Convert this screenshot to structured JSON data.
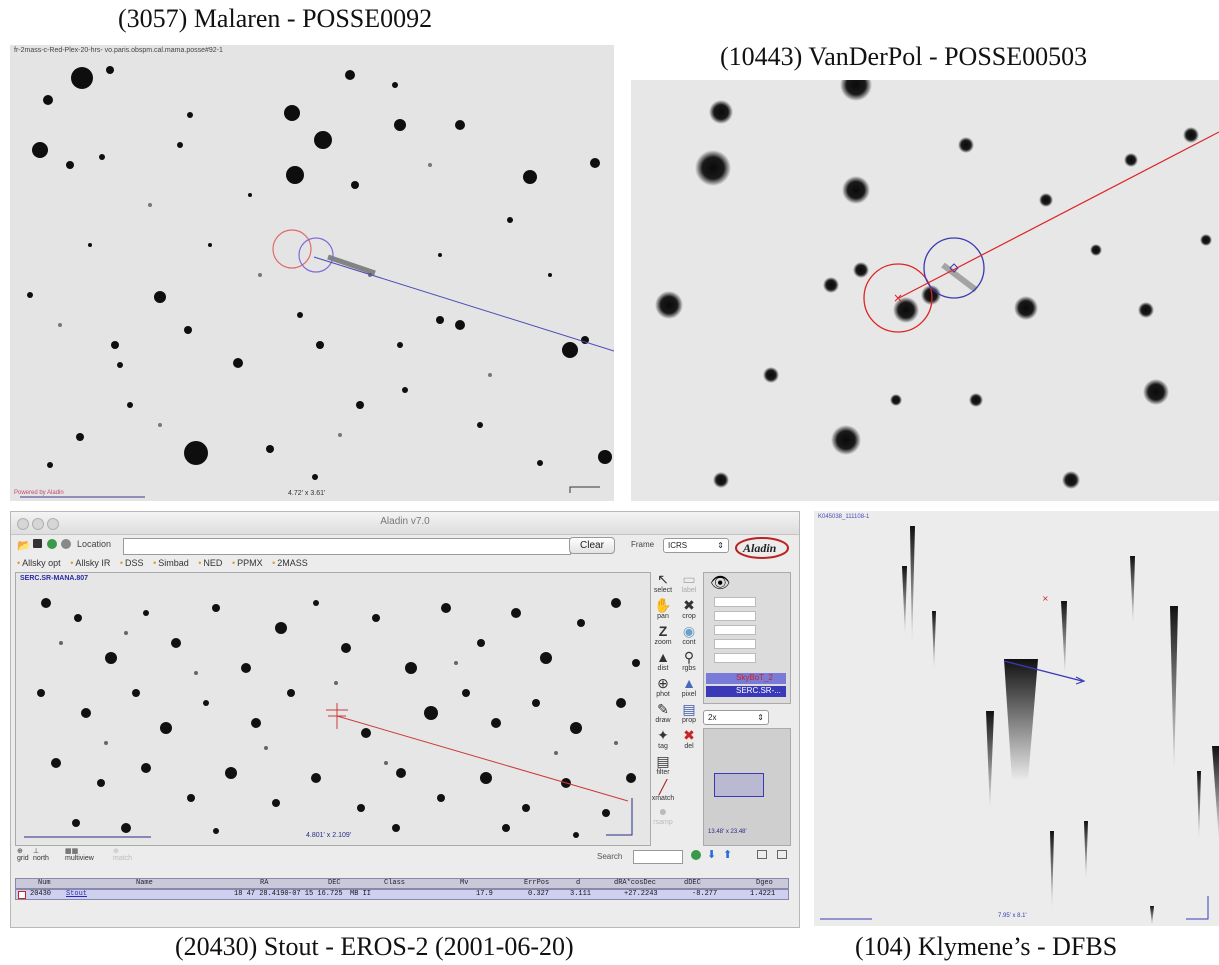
{
  "captions": {
    "top_left": "(3057) Malaren - POSSE0092",
    "top_right": "(10443) VanDerPol - POSSE00503",
    "bottom_left": "(20430) Stout - EROS-2 (2001-06-20)",
    "bottom_right": "(104) Klymene’s - DFBS"
  },
  "panel_malaren": {
    "header_text": "fr-2mass-c-Red-Plex-20-hrs- vo.paris.obspm.cal.mama.posse#92-1",
    "footer_text": "Powered by Aladin",
    "fov_label": "4.72' x 3.61'"
  },
  "panel_klymene": {
    "header_text": "K045038_111108-1",
    "fov_label": "7.95' x 8.1'"
  },
  "aladin": {
    "window_title": "Aladin v7.0",
    "location_label": "Location",
    "location_value": "",
    "clear_label": "Clear",
    "frame_label": "Frame",
    "frame_value": "ICRS",
    "logo_text": "Aladin",
    "surveys": [
      "Allsky opt",
      "Allsky IR",
      "DSS",
      "Simbad",
      "NED",
      "PPMX",
      "2MASS"
    ],
    "image_label": "SERC.SR-MANA.807",
    "fov_label": "4.801' x 2.109'",
    "tools": [
      {
        "label": "select",
        "icon": "arrow-icon"
      },
      {
        "label": "label",
        "icon": "label-icon"
      },
      {
        "label": "pan",
        "icon": "hand-icon"
      },
      {
        "label": "crop",
        "icon": "crop-icon"
      },
      {
        "label": "zoom",
        "icon": "zoom-icon"
      },
      {
        "label": "cont",
        "icon": "contour-icon"
      },
      {
        "label": "dist",
        "icon": "distance-icon"
      },
      {
        "label": "rgbs",
        "icon": "magnifier-icon"
      },
      {
        "label": "phot",
        "icon": "photometry-icon"
      },
      {
        "label": "pixel",
        "icon": "pixel-icon"
      },
      {
        "label": "draw",
        "icon": "pencil-icon"
      },
      {
        "label": "prop",
        "icon": "properties-icon"
      },
      {
        "label": "tag",
        "icon": "tag-icon"
      },
      {
        "label": "del",
        "icon": "delete-icon"
      },
      {
        "label": "filter",
        "icon": "filter-icon"
      },
      {
        "label": "xmatch",
        "icon": "cross-icon"
      },
      {
        "label": "rsamp",
        "icon": "resample-icon"
      }
    ],
    "layers": [
      {
        "name": "SkyBoT_2",
        "color": "#cc2222"
      },
      {
        "name": "SERC.SR-...",
        "color": "#ffffff"
      }
    ],
    "zoom_value": "2x",
    "zoom_fov": "13.48' x 23.48'",
    "bottom_tools": [
      "grid",
      "north",
      "multiview",
      "match"
    ],
    "search_label": "Search",
    "table": {
      "columns": [
        "Num",
        "Name",
        "RA",
        "DEC",
        "Class",
        "Mv",
        "ErrPos",
        "d",
        "dRA*cosDec",
        "dDEC",
        "Dgeo"
      ],
      "rows": [
        [
          "20430",
          "Stout",
          "18 47 28.4190",
          "-07 15 16.725",
          "MB II",
          "17.9",
          "0.327",
          "3.111",
          "+27.2243",
          "-8.277",
          "1.4221"
        ]
      ]
    }
  }
}
